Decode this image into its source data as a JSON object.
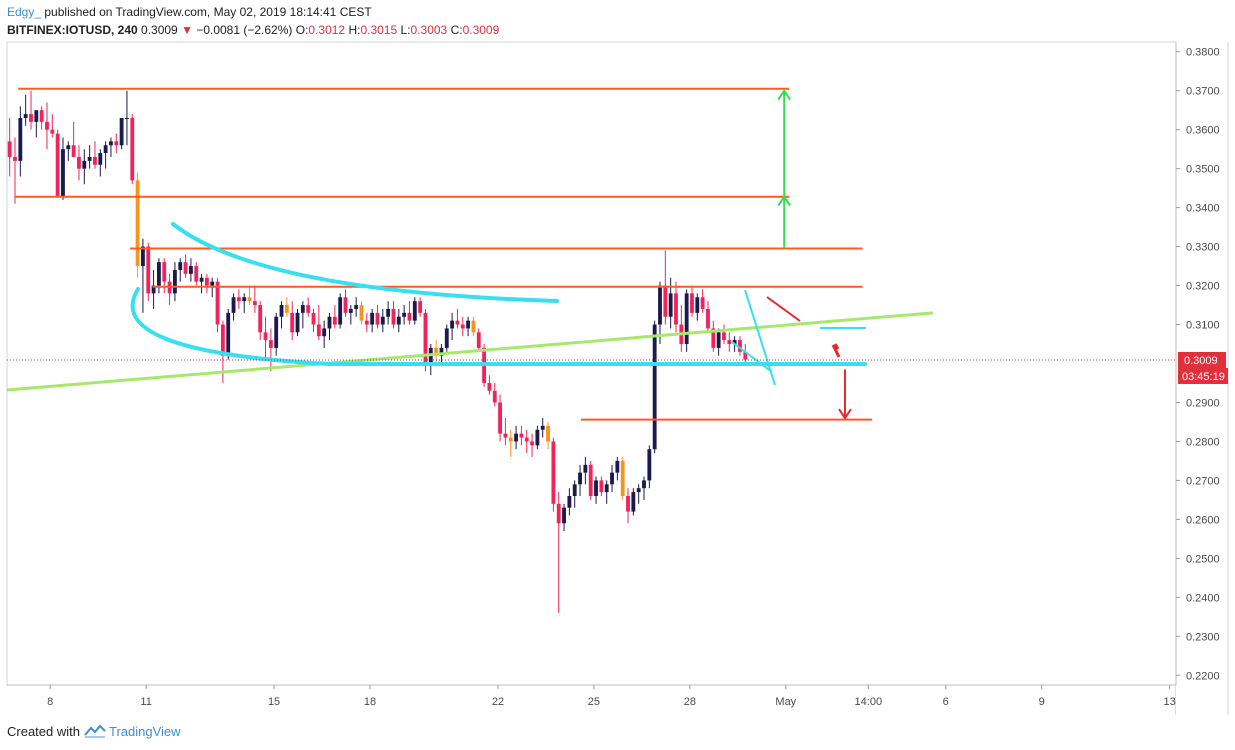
{
  "header": {
    "author": "Edgy_",
    "published": "published on TradingView.com, May 02, 2019 18:14:41 CEST",
    "symbol": "BITFINEX:IOTUSD, 240",
    "last": "0.3009",
    "change": "−0.0081 (−2.62%)",
    "o_label": "O:",
    "o_value": "0.3012",
    "h_label": "H:",
    "h_value": "0.3015",
    "l_label": "L:",
    "l_value": "0.3003",
    "c_label": "C:",
    "c_value": "0.3009"
  },
  "footer": {
    "created_with": "Created with",
    "brand": "TradingView"
  },
  "colors": {
    "up": "#1b1a4d",
    "down": "#f0245a",
    "mid": "#f7941d",
    "resistance": "#ff5a1f",
    "trend": "#a5e86a",
    "arc": "#38dff0",
    "arrow_green": "#33dd55",
    "arrow_red": "#e8282f",
    "badge": "#e0303b"
  },
  "chart_data": {
    "type": "candlestick",
    "symbol": "BITFINEX:IOTUSD",
    "interval": "240",
    "ylim": [
      0.2175,
      0.3825
    ],
    "y_ticks": [
      "0.3800",
      "0.3700",
      "0.3600",
      "0.3500",
      "0.3400",
      "0.3300",
      "0.3200",
      "0.3100",
      "0.2900",
      "0.2800",
      "0.2700",
      "0.2600",
      "0.2500",
      "0.2400",
      "0.2300",
      "0.2200"
    ],
    "x_ticks": [
      {
        "label": "8",
        "day": 8
      },
      {
        "label": "11",
        "day": 11
      },
      {
        "label": "15",
        "day": 15
      },
      {
        "label": "18",
        "day": 18
      },
      {
        "label": "22",
        "day": 22
      },
      {
        "label": "25",
        "day": 25
      },
      {
        "label": "28",
        "day": 28
      },
      {
        "label": "May",
        "day": 31
      },
      {
        "label": "14:00",
        "day": 33.58
      },
      {
        "label": "6",
        "day": 36
      },
      {
        "label": "9",
        "day": 39
      },
      {
        "label": "13",
        "day": 43
      }
    ],
    "x_range": [
      6.65,
      43.2
    ],
    "last_price": "0.3009",
    "countdown": "03:45:19",
    "ohlc": [
      [
        0.357,
        0.363,
        0.348,
        0.353
      ],
      [
        0.353,
        0.358,
        0.341,
        0.352
      ],
      [
        0.352,
        0.366,
        0.348,
        0.363
      ],
      [
        0.363,
        0.369,
        0.361,
        0.364
      ],
      [
        0.364,
        0.37,
        0.36,
        0.362
      ],
      [
        0.362,
        0.365,
        0.358,
        0.365
      ],
      [
        0.365,
        0.366,
        0.36,
        0.362
      ],
      [
        0.362,
        0.367,
        0.355,
        0.36
      ],
      [
        0.36,
        0.364,
        0.358,
        0.359
      ],
      [
        0.359,
        0.36,
        0.343,
        0.343
      ],
      [
        0.343,
        0.358,
        0.342,
        0.355
      ],
      [
        0.355,
        0.357,
        0.352,
        0.356
      ],
      [
        0.356,
        0.362,
        0.354,
        0.353
      ],
      [
        0.353,
        0.356,
        0.347,
        0.35
      ],
      [
        0.35,
        0.355,
        0.346,
        0.352
      ],
      [
        0.352,
        0.356,
        0.35,
        0.353
      ],
      [
        0.353,
        0.357,
        0.35,
        0.351
      ],
      [
        0.351,
        0.355,
        0.348,
        0.354
      ],
      [
        0.354,
        0.357,
        0.35,
        0.356
      ],
      [
        0.356,
        0.358,
        0.353,
        0.357
      ],
      [
        0.357,
        0.359,
        0.354,
        0.356
      ],
      [
        0.356,
        0.363,
        0.355,
        0.363
      ],
      [
        0.363,
        0.37,
        0.356,
        0.363
      ],
      [
        0.363,
        0.364,
        0.346,
        0.347
      ],
      [
        0.347,
        0.349,
        0.322,
        0.325
      ],
      [
        0.325,
        0.332,
        0.313,
        0.33
      ],
      [
        0.33,
        0.331,
        0.316,
        0.318
      ],
      [
        0.318,
        0.324,
        0.314,
        0.32
      ],
      [
        0.32,
        0.327,
        0.318,
        0.326
      ],
      [
        0.326,
        0.327,
        0.318,
        0.321
      ],
      [
        0.321,
        0.323,
        0.315,
        0.318
      ],
      [
        0.318,
        0.326,
        0.316,
        0.324
      ],
      [
        0.324,
        0.327,
        0.321,
        0.326
      ],
      [
        0.326,
        0.328,
        0.322,
        0.323
      ],
      [
        0.323,
        0.327,
        0.321,
        0.325
      ],
      [
        0.325,
        0.326,
        0.32,
        0.321
      ],
      [
        0.321,
        0.323,
        0.318,
        0.322
      ],
      [
        0.322,
        0.323,
        0.318,
        0.32
      ],
      [
        0.32,
        0.322,
        0.317,
        0.321
      ],
      [
        0.321,
        0.322,
        0.308,
        0.31
      ],
      [
        0.31,
        0.311,
        0.295,
        0.302
      ],
      [
        0.302,
        0.314,
        0.301,
        0.313
      ],
      [
        0.313,
        0.318,
        0.311,
        0.317
      ],
      [
        0.317,
        0.319,
        0.314,
        0.316
      ],
      [
        0.316,
        0.318,
        0.313,
        0.317
      ],
      [
        0.317,
        0.32,
        0.315,
        0.316
      ],
      [
        0.316,
        0.32,
        0.313,
        0.315
      ],
      [
        0.315,
        0.316,
        0.306,
        0.308
      ],
      [
        0.308,
        0.312,
        0.301,
        0.306
      ],
      [
        0.306,
        0.309,
        0.298,
        0.304
      ],
      [
        0.304,
        0.313,
        0.302,
        0.312
      ],
      [
        0.312,
        0.316,
        0.309,
        0.315
      ],
      [
        0.315,
        0.317,
        0.312,
        0.313
      ],
      [
        0.313,
        0.316,
        0.306,
        0.308
      ],
      [
        0.308,
        0.314,
        0.307,
        0.313
      ],
      [
        0.313,
        0.316,
        0.309,
        0.315
      ],
      [
        0.315,
        0.317,
        0.312,
        0.313
      ],
      [
        0.313,
        0.314,
        0.308,
        0.31
      ],
      [
        0.31,
        0.315,
        0.306,
        0.307
      ],
      [
        0.307,
        0.311,
        0.304,
        0.309
      ],
      [
        0.309,
        0.313,
        0.306,
        0.312
      ],
      [
        0.312,
        0.315,
        0.309,
        0.31
      ],
      [
        0.31,
        0.318,
        0.309,
        0.317
      ],
      [
        0.317,
        0.319,
        0.312,
        0.313
      ],
      [
        0.313,
        0.315,
        0.31,
        0.314
      ],
      [
        0.314,
        0.317,
        0.312,
        0.315
      ],
      [
        0.315,
        0.316,
        0.31,
        0.311
      ],
      [
        0.311,
        0.313,
        0.308,
        0.31
      ],
      [
        0.31,
        0.314,
        0.308,
        0.313
      ],
      [
        0.313,
        0.315,
        0.309,
        0.31
      ],
      [
        0.31,
        0.314,
        0.308,
        0.312
      ],
      [
        0.312,
        0.316,
        0.31,
        0.314
      ],
      [
        0.314,
        0.316,
        0.309,
        0.31
      ],
      [
        0.31,
        0.314,
        0.308,
        0.312
      ],
      [
        0.312,
        0.315,
        0.31,
        0.313
      ],
      [
        0.313,
        0.316,
        0.31,
        0.311
      ],
      [
        0.311,
        0.317,
        0.31,
        0.316
      ],
      [
        0.316,
        0.317,
        0.312,
        0.313
      ],
      [
        0.313,
        0.314,
        0.298,
        0.3
      ],
      [
        0.3,
        0.305,
        0.297,
        0.304
      ],
      [
        0.304,
        0.306,
        0.3,
        0.302
      ],
      [
        0.302,
        0.305,
        0.3,
        0.304
      ],
      [
        0.304,
        0.31,
        0.303,
        0.309
      ],
      [
        0.309,
        0.313,
        0.306,
        0.311
      ],
      [
        0.311,
        0.314,
        0.309,
        0.31
      ],
      [
        0.31,
        0.312,
        0.307,
        0.309
      ],
      [
        0.309,
        0.312,
        0.307,
        0.311
      ],
      [
        0.311,
        0.312,
        0.307,
        0.308
      ],
      [
        0.308,
        0.309,
        0.303,
        0.304
      ],
      [
        0.304,
        0.305,
        0.294,
        0.295
      ],
      [
        0.295,
        0.297,
        0.292,
        0.293
      ],
      [
        0.293,
        0.295,
        0.289,
        0.29
      ],
      [
        0.29,
        0.292,
        0.28,
        0.282
      ],
      [
        0.282,
        0.286,
        0.279,
        0.281
      ],
      [
        0.281,
        0.283,
        0.276,
        0.28
      ],
      [
        0.28,
        0.284,
        0.278,
        0.282
      ],
      [
        0.282,
        0.284,
        0.279,
        0.281
      ],
      [
        0.281,
        0.283,
        0.277,
        0.28
      ],
      [
        0.28,
        0.282,
        0.276,
        0.279
      ],
      [
        0.279,
        0.284,
        0.278,
        0.283
      ],
      [
        0.283,
        0.286,
        0.281,
        0.284
      ],
      [
        0.284,
        0.285,
        0.278,
        0.28
      ],
      [
        0.28,
        0.281,
        0.262,
        0.264
      ],
      [
        0.264,
        0.267,
        0.236,
        0.259
      ],
      [
        0.259,
        0.264,
        0.257,
        0.263
      ],
      [
        0.263,
        0.268,
        0.261,
        0.266
      ],
      [
        0.266,
        0.27,
        0.263,
        0.269
      ],
      [
        0.269,
        0.274,
        0.266,
        0.272
      ],
      [
        0.272,
        0.276,
        0.269,
        0.274
      ],
      [
        0.274,
        0.275,
        0.265,
        0.266
      ],
      [
        0.266,
        0.271,
        0.264,
        0.27
      ],
      [
        0.27,
        0.271,
        0.266,
        0.267
      ],
      [
        0.267,
        0.27,
        0.264,
        0.269
      ],
      [
        0.269,
        0.274,
        0.267,
        0.272
      ],
      [
        0.272,
        0.276,
        0.27,
        0.275
      ],
      [
        0.275,
        0.276,
        0.265,
        0.266
      ],
      [
        0.266,
        0.268,
        0.259,
        0.262
      ],
      [
        0.262,
        0.268,
        0.261,
        0.267
      ],
      [
        0.267,
        0.269,
        0.264,
        0.268
      ],
      [
        0.268,
        0.271,
        0.265,
        0.27
      ],
      [
        0.27,
        0.279,
        0.268,
        0.278
      ],
      [
        0.278,
        0.311,
        0.277,
        0.31
      ],
      [
        0.31,
        0.321,
        0.305,
        0.32
      ],
      [
        0.32,
        0.329,
        0.31,
        0.312
      ],
      [
        0.312,
        0.322,
        0.309,
        0.318
      ],
      [
        0.318,
        0.321,
        0.308,
        0.31
      ],
      [
        0.31,
        0.315,
        0.303,
        0.305
      ],
      [
        0.305,
        0.319,
        0.303,
        0.318
      ],
      [
        0.318,
        0.32,
        0.312,
        0.313
      ],
      [
        0.313,
        0.318,
        0.311,
        0.317
      ],
      [
        0.317,
        0.319,
        0.313,
        0.314
      ],
      [
        0.314,
        0.316,
        0.308,
        0.309
      ],
      [
        0.309,
        0.311,
        0.303,
        0.304
      ],
      [
        0.304,
        0.309,
        0.302,
        0.308
      ],
      [
        0.308,
        0.31,
        0.305,
        0.306
      ],
      [
        0.306,
        0.308,
        0.303,
        0.305
      ],
      [
        0.305,
        0.307,
        0.303,
        0.306
      ],
      [
        0.306,
        0.307,
        0.302,
        0.303
      ],
      [
        0.303,
        0.305,
        0.3,
        0.301
      ]
    ],
    "drawings": {
      "resistance_lines": [
        {
          "price": 0.3705,
          "from_day": 7.0,
          "to_day": 31.1
        },
        {
          "price": 0.3428,
          "from_day": 6.9,
          "to_day": 31.1
        },
        {
          "price": 0.3295,
          "from_day": 10.5,
          "to_day": 33.4
        },
        {
          "price": 0.3197,
          "from_day": 11.2,
          "to_day": 33.4
        },
        {
          "price": 0.2856,
          "from_day": 24.6,
          "to_day": 33.7
        }
      ],
      "trend_line": {
        "from": [
          6.65,
          0.2932
        ],
        "to": [
          35.6,
          0.313
        ]
      },
      "support_arc": {
        "price": 0.301,
        "from_day": 15.6,
        "to_day": 33.4
      },
      "green_arrows": [
        {
          "day": 30.95,
          "from": 0.3295,
          "to": 0.3428
        },
        {
          "day": 30.95,
          "from": 0.3428,
          "to": 0.37
        }
      ],
      "red_arrow": {
        "day": 32.85,
        "from": 0.2985,
        "to": 0.286
      }
    }
  }
}
